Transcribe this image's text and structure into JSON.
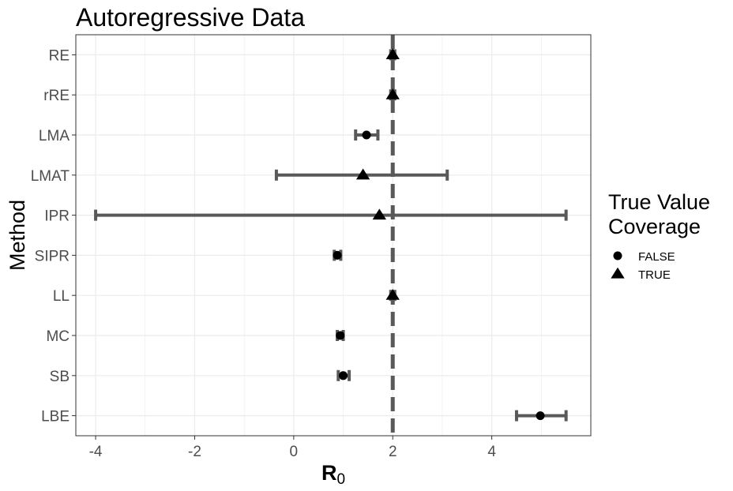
{
  "chart_data": {
    "type": "scatter",
    "title": "Autoregressive Data",
    "xlabel_main": "R",
    "xlabel_sub": "0",
    "ylabel": "Method",
    "xlim": [
      -4.4,
      6.0
    ],
    "x_ticks": [
      -4,
      -2,
      0,
      2,
      4
    ],
    "grid": true,
    "reference_line": {
      "x": 2,
      "style": "dashed"
    },
    "categories": [
      "RE",
      "rRE",
      "LMA",
      "LMAT",
      "IPR",
      "SIPR",
      "LL",
      "MC",
      "SB",
      "LBE"
    ],
    "points": [
      {
        "method": "RE",
        "estimate": 2.0,
        "lower": 1.96,
        "upper": 2.04,
        "coverage": "TRUE"
      },
      {
        "method": "rRE",
        "estimate": 2.0,
        "lower": 1.96,
        "upper": 2.04,
        "coverage": "TRUE"
      },
      {
        "method": "LMA",
        "estimate": 1.47,
        "lower": 1.25,
        "upper": 1.7,
        "coverage": "FALSE"
      },
      {
        "method": "LMAT",
        "estimate": 1.4,
        "lower": -0.35,
        "upper": 3.1,
        "coverage": "TRUE"
      },
      {
        "method": "IPR",
        "estimate": 1.73,
        "lower": -4.0,
        "upper": 5.5,
        "coverage": "TRUE"
      },
      {
        "method": "SIPR",
        "estimate": 0.88,
        "lower": 0.82,
        "upper": 0.95,
        "coverage": "FALSE"
      },
      {
        "method": "LL",
        "estimate": 2.0,
        "lower": 1.96,
        "upper": 2.04,
        "coverage": "TRUE"
      },
      {
        "method": "MC",
        "estimate": 0.94,
        "lower": 0.88,
        "upper": 1.0,
        "coverage": "FALSE"
      },
      {
        "method": "SB",
        "estimate": 1.0,
        "lower": 0.9,
        "upper": 1.12,
        "coverage": "FALSE"
      },
      {
        "method": "LBE",
        "estimate": 4.98,
        "lower": 4.5,
        "upper": 5.5,
        "coverage": "FALSE"
      }
    ],
    "legend": {
      "title_line1": "True Value",
      "title_line2": "Coverage",
      "placement": "right",
      "entries": [
        {
          "label": "FALSE",
          "shape": "circle"
        },
        {
          "label": "TRUE",
          "shape": "triangle"
        }
      ]
    },
    "colors": {
      "errorbar": "#595959",
      "point": "#000000",
      "reference_line": "#595959",
      "grid": "#ebebeb",
      "panel_border": "#333333"
    }
  }
}
